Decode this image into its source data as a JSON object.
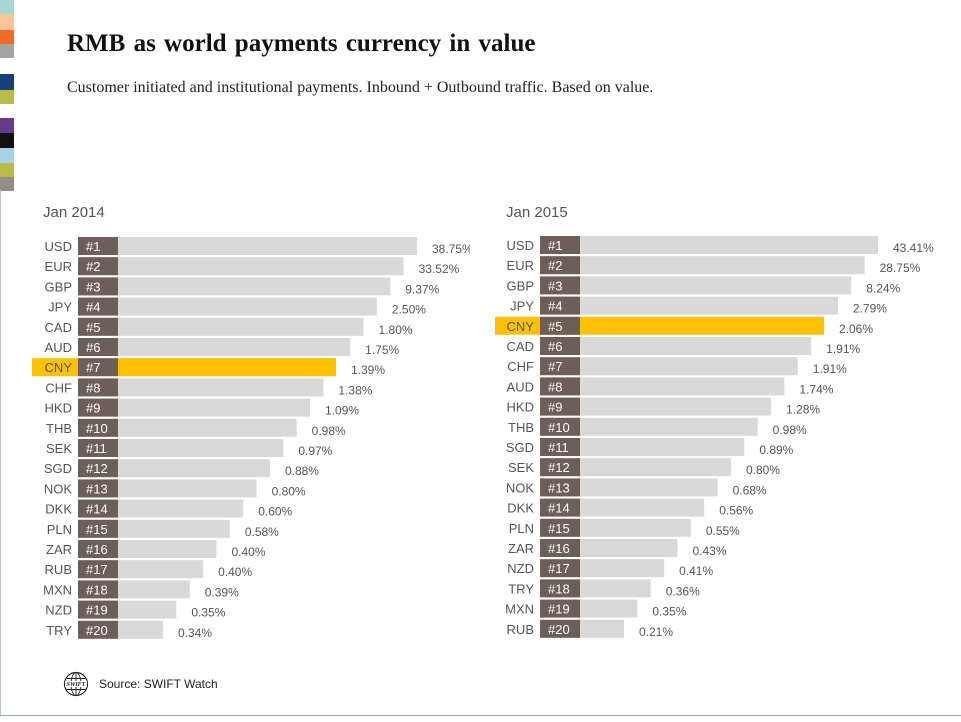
{
  "title": "RMB as world payments currency in value",
  "subtitle": "Customer initiated  and institutional  payments. Inbound + Outbound traffic. Based on value.",
  "source": "Source: SWIFT Watch",
  "logo_text": "SWIFT",
  "icons": {
    "logo": "swift-globe-icon"
  },
  "colors": {
    "bar": "#d9d9d9",
    "highlight": "#ffc000",
    "rank_box": "#6d5e57",
    "stripes": [
      "#a8d7d8",
      "#f7c49c",
      "#ef6b2a",
      "#a0a5a4",
      "#ffffff",
      "#17407a",
      "#b8ba4a",
      "#ffffff",
      "#663a8c",
      "#111111",
      "#a4d4e3",
      "#b8ba4a",
      "#958c86"
    ]
  },
  "chart_data": [
    {
      "type": "bar",
      "orientation": "horizontal",
      "title": "Jan 2014",
      "highlight": "CNY",
      "categories": [
        "USD",
        "EUR",
        "GBP",
        "JPY",
        "CAD",
        "AUD",
        "CNY",
        "CHF",
        "HKD",
        "THB",
        "SEK",
        "SGD",
        "NOK",
        "DKK",
        "PLN",
        "ZAR",
        "RUB",
        "MXN",
        "NZD",
        "TRY"
      ],
      "ranks": [
        "#1",
        "#2",
        "#3",
        "#4",
        "#5",
        "#6",
        "#7",
        "#8",
        "#9",
        "#10",
        "#11",
        "#12",
        "#13",
        "#14",
        "#15",
        "#16",
        "#17",
        "#18",
        "#19",
        "#20"
      ],
      "values": [
        38.75,
        33.52,
        9.37,
        2.5,
        1.8,
        1.75,
        1.39,
        1.38,
        1.09,
        0.98,
        0.97,
        0.88,
        0.8,
        0.6,
        0.58,
        0.4,
        0.4,
        0.39,
        0.35,
        0.34
      ],
      "labels": [
        "38.75%",
        "33.52%",
        "9.37%",
        "2.50%",
        "1.80%",
        "1.75%",
        "1.39%",
        "1.38%",
        "1.09%",
        "0.98%",
        "0.97%",
        "0.88%",
        "0.80%",
        "0.60%",
        "0.58%",
        "0.40%",
        "0.40%",
        "0.39%",
        "0.35%",
        "0.34%"
      ]
    },
    {
      "type": "bar",
      "orientation": "horizontal",
      "title": "Jan 2015",
      "highlight": "CNY",
      "categories": [
        "USD",
        "EUR",
        "GBP",
        "JPY",
        "CNY",
        "CAD",
        "CHF",
        "AUD",
        "HKD",
        "THB",
        "SGD",
        "SEK",
        "NOK",
        "DKK",
        "PLN",
        "ZAR",
        "NZD",
        "TRY",
        "MXN",
        "RUB"
      ],
      "ranks": [
        "#1",
        "#2",
        "#3",
        "#4",
        "#5",
        "#6",
        "#7",
        "#8",
        "#9",
        "#10",
        "#11",
        "#12",
        "#13",
        "#14",
        "#15",
        "#16",
        "#17",
        "#18",
        "#19",
        "#20"
      ],
      "values": [
        43.41,
        28.75,
        8.24,
        2.79,
        2.06,
        1.91,
        1.91,
        1.74,
        1.28,
        0.98,
        0.89,
        0.8,
        0.68,
        0.56,
        0.55,
        0.43,
        0.41,
        0.36,
        0.35,
        0.21
      ],
      "labels": [
        "43.41%",
        "28.75%",
        "8.24%",
        "2.79%",
        "2.06%",
        "1.91%",
        "1.91%",
        "1.74%",
        "1.28%",
        "0.98%",
        "0.89%",
        "0.80%",
        "0.68%",
        "0.56%",
        "0.55%",
        "0.43%",
        "0.41%",
        "0.36%",
        "0.35%",
        "0.21%"
      ]
    }
  ]
}
